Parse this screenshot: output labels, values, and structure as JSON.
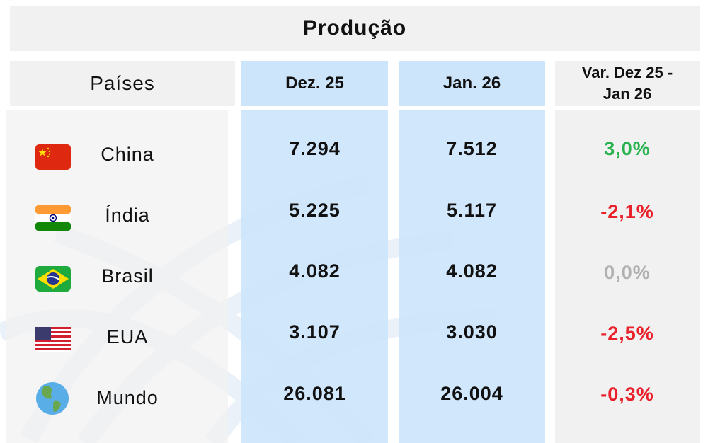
{
  "title": "Produção",
  "table": {
    "headers": [
      "Países",
      "Dez. 25",
      "Jan. 26",
      "Var. Dez 25 - Jan 26"
    ],
    "rows": [
      [
        "China",
        "7.294",
        "7.512",
        "3,0%"
      ],
      [
        "Índia",
        "5.225",
        "5.117",
        "-2,1%"
      ],
      [
        "Brasil",
        "4.082",
        "4.082",
        "0,0%"
      ],
      [
        "EUA",
        "3.107",
        "3.030",
        "-2,5%"
      ],
      [
        "Mundo",
        "26.081",
        "26.004",
        "-0,3%"
      ]
    ]
  }
}
